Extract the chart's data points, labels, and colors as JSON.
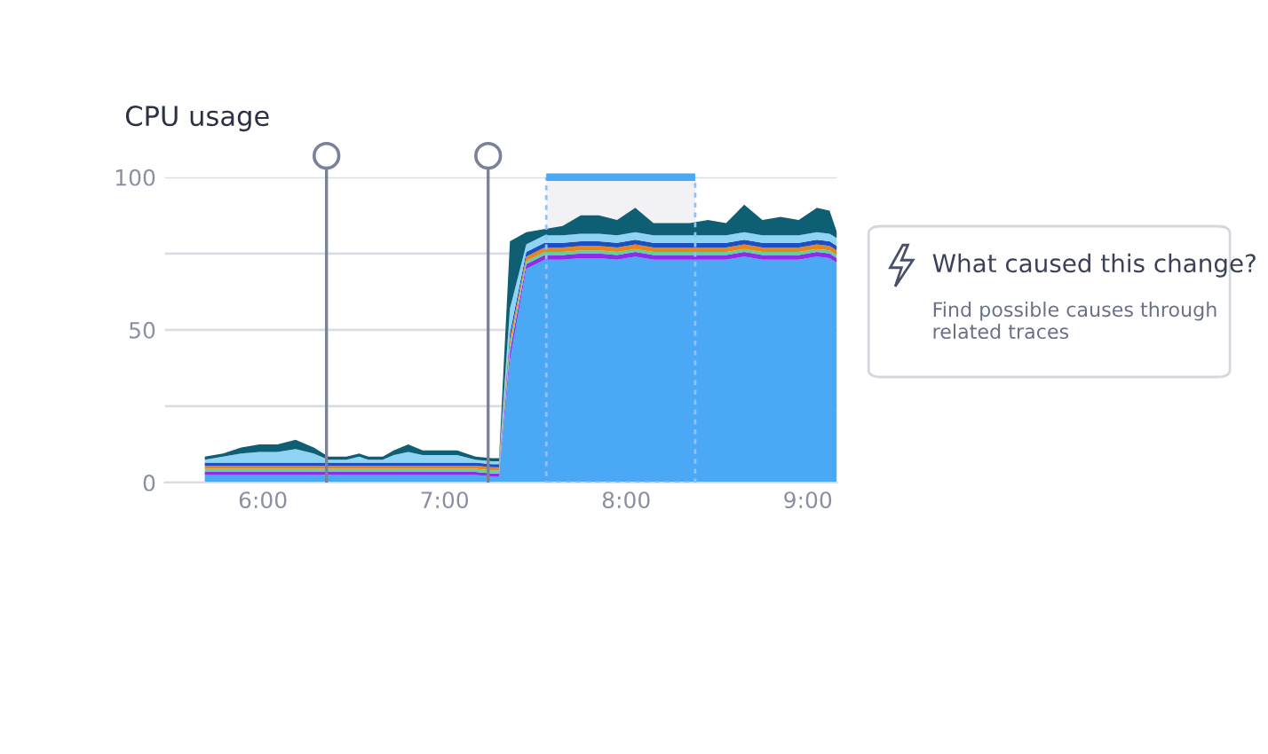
{
  "chart_data": {
    "type": "area",
    "stacked": true,
    "title": "CPU usage",
    "x": [
      5.68,
      5.78,
      5.88,
      5.98,
      6.08,
      6.18,
      6.28,
      6.36,
      6.46,
      6.53,
      6.58,
      6.66,
      6.72,
      6.8,
      6.88,
      6.97,
      7.07,
      7.17,
      7.26,
      7.3,
      7.36,
      7.45,
      7.55,
      7.65,
      7.75,
      7.85,
      7.95,
      8.05,
      8.15,
      8.25,
      8.35,
      8.45,
      8.55,
      8.65,
      8.75,
      8.85,
      8.95,
      9.05,
      9.12,
      9.16
    ],
    "series": [
      {
        "color": "#4aa8f5",
        "values": [
          2.5,
          2.5,
          2.5,
          2.5,
          2.5,
          2.5,
          2.5,
          2.5,
          2.5,
          2.5,
          2.5,
          2.5,
          2.5,
          2.5,
          2.5,
          2.5,
          2.5,
          2.5,
          2,
          2,
          40,
          70,
          73,
          73,
          73.5,
          73.5,
          73,
          74,
          73,
          73,
          73,
          73,
          73,
          74,
          73,
          73,
          73,
          74,
          73.5,
          72
        ]
      },
      {
        "color": "#8f2bf0",
        "values": [
          1,
          1,
          1,
          1,
          1,
          1,
          1,
          1,
          1,
          1,
          1,
          1,
          1,
          1,
          1,
          1,
          1,
          1,
          1,
          1,
          3,
          1.5,
          1.5,
          1.5,
          1.5,
          1.5,
          1.5,
          1.5,
          1.5,
          1.5,
          1.5,
          1.5,
          1.5,
          1.5,
          1.5,
          1.5,
          1.5,
          1.5,
          1.5,
          1.5
        ]
      },
      {
        "color": "#5fd0a0",
        "values": [
          1,
          1,
          1,
          1,
          1,
          1,
          1,
          1,
          1,
          1,
          1,
          1,
          1,
          1,
          1,
          1,
          1,
          1,
          1,
          1,
          2,
          1,
          1,
          1,
          1,
          1,
          1,
          1,
          1,
          1,
          1,
          1,
          1,
          1,
          1,
          1,
          1,
          1,
          1,
          1
        ]
      },
      {
        "color": "#e8861a",
        "values": [
          1,
          1,
          1,
          1,
          1,
          1,
          1,
          1,
          1,
          1,
          1,
          1,
          1,
          1,
          1,
          1,
          1,
          1,
          1,
          1,
          2,
          1.5,
          1.5,
          1.5,
          1.5,
          1.5,
          1.5,
          1.5,
          1.5,
          1.5,
          1.5,
          1.5,
          1.5,
          1.5,
          1.5,
          1.5,
          1.5,
          1.5,
          1.5,
          1.5
        ]
      },
      {
        "color": "#1e4fc0",
        "values": [
          1,
          1,
          1,
          1,
          1,
          1,
          1,
          1,
          1,
          1,
          1,
          1,
          1,
          1,
          1,
          1,
          1,
          1,
          1,
          1,
          2,
          1.5,
          1.5,
          1.5,
          1.5,
          1.5,
          1.5,
          1.5,
          1.5,
          1.5,
          1.5,
          1.5,
          1.5,
          1.5,
          1.5,
          1.5,
          1.5,
          1.5,
          1.5,
          1.5
        ]
      },
      {
        "color": "#8fd3f5",
        "values": [
          1,
          2,
          3,
          3.5,
          3.5,
          4.5,
          3,
          1,
          1,
          2,
          1,
          1,
          2.5,
          3.5,
          2.5,
          2.5,
          2.5,
          1,
          1,
          1,
          8,
          2.5,
          2.5,
          2.5,
          2.5,
          2.5,
          2.5,
          2.5,
          2.5,
          2.5,
          2.5,
          2.5,
          2.5,
          2.5,
          2.5,
          2.5,
          2.5,
          2.5,
          2.5,
          2.5
        ]
      },
      {
        "color": "#0e5f73",
        "values": [
          1,
          1,
          2,
          2.5,
          2.5,
          3,
          2,
          1,
          1,
          1,
          1,
          1,
          1.5,
          2.5,
          1.5,
          1.5,
          1.5,
          1,
          1,
          1,
          22,
          4,
          2,
          3,
          6,
          6,
          5,
          8,
          4,
          4,
          4,
          5,
          4,
          9,
          5,
          6,
          5,
          8,
          7.5,
          2
        ]
      }
    ],
    "xlim": [
      5.46,
      9.16
    ],
    "xticks": [
      {
        "value": 6,
        "label": "6:00"
      },
      {
        "value": 7,
        "label": "7:00"
      },
      {
        "value": 8,
        "label": "8:00"
      },
      {
        "value": 9,
        "label": "9:00"
      }
    ],
    "ylim": [
      0,
      100
    ],
    "yticks": [
      0,
      {
        "value": 25,
        "label": null
      },
      50,
      {
        "value": 75,
        "label": null
      },
      100
    ],
    "grid": "y",
    "ref_lines": [
      {
        "axis": "x",
        "value": 6.35,
        "color": "#7a8199"
      },
      {
        "axis": "x",
        "value": 7.24,
        "color": "#7a8199"
      }
    ],
    "bands": [
      {
        "axis": "x",
        "from": 7.56,
        "to": 8.38,
        "color": "#f2f2f4"
      }
    ],
    "annotations": [
      "What caused this change?",
      "Find possible causes through related traces"
    ]
  }
}
